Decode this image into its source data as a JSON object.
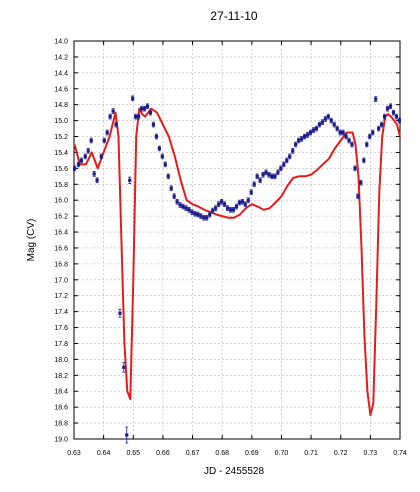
{
  "chart_data": {
    "type": "scatter",
    "title": "27-11-10",
    "xlabel": "JD - 2455528",
    "ylabel": "Mag (CV)",
    "xlim": [
      0.63,
      0.74
    ],
    "ylim": [
      19.0,
      14.0
    ],
    "y_inverted": true,
    "grid": true,
    "x_ticks": [
      "0.63",
      "0.64",
      "0.65",
      "0.66",
      "0.67",
      "0.68",
      "0.69",
      "0.70",
      "0.71",
      "0.72",
      "0.73",
      "0.74"
    ],
    "y_ticks": [
      "14.0",
      "14.2",
      "14.4",
      "14.6",
      "14.8",
      "15.0",
      "15.2",
      "15.4",
      "15.6",
      "15.8",
      "16.0",
      "16.2",
      "16.4",
      "16.6",
      "16.8",
      "17.0",
      "17.2",
      "17.4",
      "17.6",
      "17.8",
      "18.0",
      "18.2",
      "18.4",
      "18.6",
      "18.8",
      "19.0"
    ],
    "colors": {
      "points": "#1c1c8c",
      "model": "#e61c1c",
      "axis": "#000000",
      "grid": "#b8b8b8"
    },
    "series": [
      {
        "kind": "points",
        "x": [
          0.6302,
          0.6315,
          0.6325,
          0.6338,
          0.6348,
          0.6358,
          0.6368,
          0.6378,
          0.6392,
          0.6402,
          0.6412,
          0.6422,
          0.6432,
          0.6442,
          0.6455,
          0.6468,
          0.6478,
          0.6488,
          0.6498,
          0.6508,
          0.6518,
          0.6528,
          0.6538,
          0.6548,
          0.6558,
          0.6568,
          0.6578,
          0.6588,
          0.6598,
          0.6608,
          0.6618,
          0.6628,
          0.6638,
          0.6648,
          0.6658,
          0.6668,
          0.6678,
          0.6688,
          0.6698,
          0.6708,
          0.6718,
          0.6728,
          0.6738,
          0.6748,
          0.6758,
          0.6768,
          0.6778,
          0.6788,
          0.6798,
          0.6808,
          0.6818,
          0.6828,
          0.6838,
          0.6848,
          0.6858,
          0.6868,
          0.6878,
          0.6888,
          0.6898,
          0.6908,
          0.6918,
          0.6928,
          0.6938,
          0.6948,
          0.6958,
          0.6968,
          0.6978,
          0.6988,
          0.6998,
          0.7008,
          0.7018,
          0.7028,
          0.7038,
          0.7048,
          0.7058,
          0.7068,
          0.7078,
          0.7088,
          0.7098,
          0.7108,
          0.7118,
          0.7128,
          0.7138,
          0.7148,
          0.7158,
          0.7168,
          0.7178,
          0.7188,
          0.7198,
          0.7208,
          0.7218,
          0.7228,
          0.7238,
          0.7248,
          0.7258,
          0.7268,
          0.7278,
          0.7288,
          0.7298,
          0.7308,
          0.7318,
          0.7328,
          0.7338,
          0.7348,
          0.7358,
          0.7368,
          0.7378,
          0.7388,
          0.7398
        ],
        "y": [
          15.6,
          15.55,
          15.5,
          15.45,
          15.38,
          15.25,
          15.67,
          15.75,
          15.45,
          15.25,
          15.15,
          14.95,
          14.88,
          15.05,
          17.42,
          18.1,
          18.95,
          15.75,
          14.72,
          14.95,
          14.95,
          14.85,
          14.85,
          14.82,
          14.9,
          15.05,
          15.2,
          15.35,
          15.45,
          15.55,
          15.7,
          15.85,
          15.95,
          16.02,
          16.06,
          16.08,
          16.1,
          16.12,
          16.15,
          16.17,
          16.18,
          16.2,
          16.22,
          16.22,
          16.18,
          16.13,
          16.1,
          16.05,
          16.02,
          16.05,
          16.1,
          16.12,
          16.12,
          16.08,
          16.03,
          16.02,
          16.05,
          16.0,
          15.9,
          15.8,
          15.7,
          15.75,
          15.68,
          15.65,
          15.68,
          15.7,
          15.7,
          15.65,
          15.6,
          15.55,
          15.5,
          15.45,
          15.38,
          15.3,
          15.25,
          15.23,
          15.2,
          15.18,
          15.15,
          15.12,
          15.1,
          15.05,
          15.02,
          14.98,
          14.95,
          15.0,
          15.05,
          15.1,
          15.15,
          15.15,
          15.2,
          15.25,
          15.3,
          15.6,
          15.95,
          15.78,
          15.5,
          15.3,
          15.2,
          15.15,
          14.73,
          15.1,
          15.05,
          14.95,
          14.85,
          14.82,
          14.9,
          14.95,
          15.0
        ],
        "yerr": [
          0.03,
          0.03,
          0.03,
          0.03,
          0.03,
          0.03,
          0.03,
          0.03,
          0.03,
          0.03,
          0.03,
          0.03,
          0.03,
          0.03,
          0.05,
          0.06,
          0.1,
          0.04,
          0.03,
          0.03,
          0.03,
          0.03,
          0.03,
          0.03,
          0.03,
          0.03,
          0.03,
          0.03,
          0.03,
          0.03,
          0.03,
          0.03,
          0.03,
          0.03,
          0.03,
          0.03,
          0.03,
          0.03,
          0.03,
          0.03,
          0.03,
          0.03,
          0.03,
          0.03,
          0.03,
          0.03,
          0.03,
          0.03,
          0.03,
          0.03,
          0.03,
          0.03,
          0.03,
          0.03,
          0.03,
          0.03,
          0.03,
          0.03,
          0.03,
          0.03,
          0.03,
          0.03,
          0.03,
          0.03,
          0.03,
          0.03,
          0.03,
          0.03,
          0.03,
          0.03,
          0.03,
          0.03,
          0.03,
          0.03,
          0.03,
          0.03,
          0.03,
          0.03,
          0.03,
          0.03,
          0.03,
          0.03,
          0.03,
          0.03,
          0.03,
          0.03,
          0.03,
          0.03,
          0.03,
          0.03,
          0.03,
          0.03,
          0.03,
          0.03,
          0.03,
          0.03,
          0.03,
          0.03,
          0.03,
          0.03,
          0.03,
          0.03,
          0.03,
          0.03,
          0.03,
          0.03,
          0.03,
          0.03,
          0.03
        ]
      },
      {
        "kind": "line",
        "x": [
          0.6302,
          0.632,
          0.634,
          0.636,
          0.638,
          0.64,
          0.642,
          0.644,
          0.645,
          0.646,
          0.647,
          0.648,
          0.649,
          0.65,
          0.651,
          0.652,
          0.653,
          0.654,
          0.656,
          0.658,
          0.66,
          0.662,
          0.664,
          0.666,
          0.668,
          0.67,
          0.672,
          0.674,
          0.676,
          0.678,
          0.68,
          0.682,
          0.684,
          0.686,
          0.688,
          0.69,
          0.692,
          0.694,
          0.696,
          0.698,
          0.7,
          0.702,
          0.704,
          0.706,
          0.708,
          0.71,
          0.712,
          0.714,
          0.716,
          0.718,
          0.72,
          0.722,
          0.724,
          0.725,
          0.726,
          0.727,
          0.728,
          0.729,
          0.73,
          0.731,
          0.732,
          0.733,
          0.734,
          0.735,
          0.736,
          0.737,
          0.738,
          0.739,
          0.74
        ],
        "y": [
          15.3,
          15.55,
          15.55,
          15.4,
          15.6,
          15.4,
          15.2,
          14.9,
          15.2,
          16.5,
          17.8,
          18.4,
          18.5,
          17.0,
          15.2,
          14.85,
          14.92,
          14.95,
          14.85,
          14.9,
          15.05,
          15.2,
          15.45,
          15.75,
          16.0,
          16.05,
          16.08,
          16.12,
          16.15,
          16.18,
          16.2,
          16.22,
          16.22,
          16.18,
          16.1,
          16.05,
          16.08,
          16.12,
          16.1,
          16.03,
          15.95,
          15.82,
          15.72,
          15.7,
          15.7,
          15.68,
          15.62,
          15.55,
          15.48,
          15.35,
          15.25,
          15.15,
          15.15,
          15.3,
          15.7,
          16.6,
          17.7,
          18.4,
          18.7,
          18.55,
          17.3,
          15.9,
          15.2,
          14.95,
          14.92,
          14.95,
          15.0,
          15.05,
          15.2
        ]
      }
    ]
  }
}
